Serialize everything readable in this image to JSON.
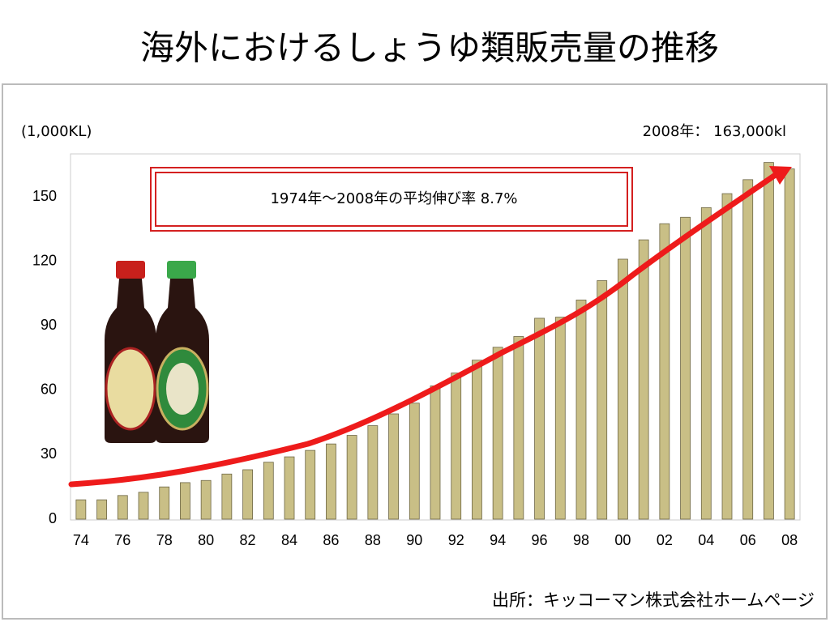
{
  "chart_data": {
    "type": "bar",
    "title": "海外におけるしょうゆ類販売量の推移",
    "y_axis_label": "(1,000KL)",
    "annotation_latest": "2008年：  163,000kl",
    "annotation_growth": "1974年～2008年の平均伸び率   8.7%",
    "source": "出所：キッコーマン株式会社ホームページ",
    "categories": [
      "74",
      null,
      "76",
      null,
      "78",
      null,
      "80",
      null,
      "82",
      null,
      "84",
      null,
      "86",
      null,
      "88",
      null,
      "90",
      null,
      "92",
      null,
      "94",
      null,
      "96",
      null,
      "98",
      null,
      "00",
      null,
      "02",
      null,
      "04",
      null,
      "06",
      null,
      "08"
    ],
    "values": [
      9,
      9,
      11,
      12.5,
      15,
      17,
      18,
      21,
      23,
      26.5,
      29,
      32,
      35,
      39,
      43.5,
      49,
      54,
      62,
      68,
      74,
      80,
      85,
      93.5,
      94,
      102,
      111,
      121,
      130,
      137.5,
      140.5,
      145,
      151.5,
      158,
      166,
      163
    ],
    "color": "#c9bf86",
    "ylim": [
      0,
      170
    ],
    "yticks": [
      0,
      30,
      60,
      90,
      120,
      150
    ],
    "grid": false
  }
}
